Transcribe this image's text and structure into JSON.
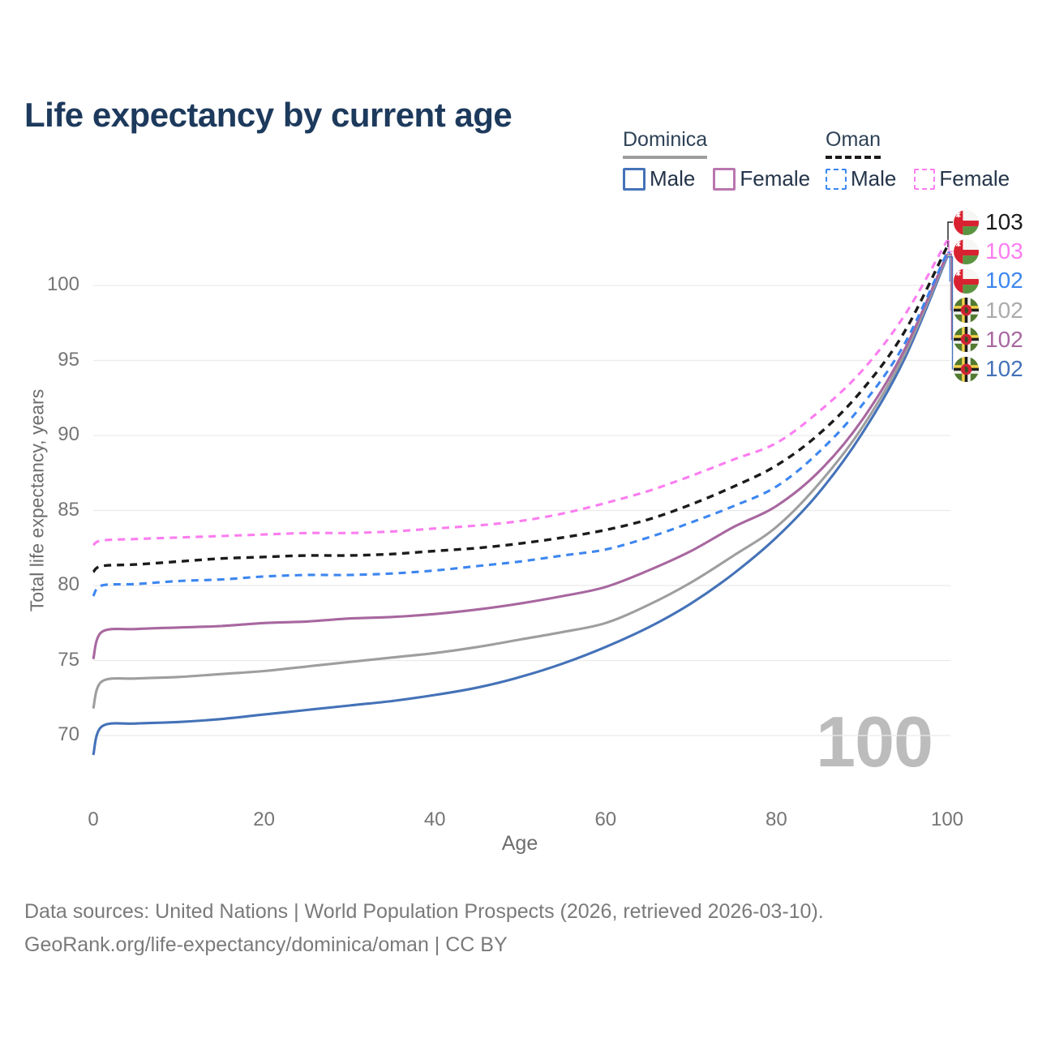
{
  "chart_data": {
    "type": "line",
    "title": "Life expectancy by current age",
    "xlabel": "Age",
    "ylabel": "Total life expectancy, years",
    "xlim": [
      0,
      100
    ],
    "ylim": [
      67,
      104
    ],
    "xticks": [
      0,
      20,
      40,
      60,
      80,
      100
    ],
    "yticks": [
      70,
      75,
      80,
      85,
      90,
      95,
      100
    ],
    "grid": true,
    "grid_color": "#eaeaea",
    "legend_position": "top-right",
    "x": [
      0,
      1,
      5,
      10,
      15,
      20,
      25,
      30,
      35,
      40,
      45,
      50,
      55,
      60,
      65,
      70,
      75,
      80,
      85,
      90,
      95,
      100
    ],
    "series": [
      {
        "key": "dominica_male",
        "name": "Dominica Male",
        "country": "Dominica",
        "sex": "Male",
        "color": "#4472b8",
        "dash": false,
        "values": [
          68.7,
          70.6,
          70.8,
          70.9,
          71.1,
          71.4,
          71.7,
          72.0,
          72.3,
          72.7,
          73.2,
          73.9,
          74.8,
          75.9,
          77.2,
          78.8,
          80.8,
          83.2,
          86.2,
          90.1,
          95.1,
          101.9
        ]
      },
      {
        "key": "dominica_total",
        "name": "Dominica Total",
        "country": "Dominica",
        "sex": "Total",
        "color": "#9e9e9e",
        "dash": false,
        "values": [
          71.8,
          73.6,
          73.8,
          73.9,
          74.1,
          74.3,
          74.6,
          74.9,
          75.2,
          75.5,
          75.9,
          76.4,
          76.9,
          77.5,
          78.7,
          80.2,
          82.0,
          83.9,
          86.8,
          90.5,
          95.4,
          102.0
        ]
      },
      {
        "key": "dominica_female",
        "name": "Dominica Female",
        "country": "Dominica",
        "sex": "Female",
        "color": "#a8679f",
        "dash": false,
        "values": [
          75.1,
          76.9,
          77.1,
          77.2,
          77.3,
          77.5,
          77.6,
          77.8,
          77.9,
          78.1,
          78.4,
          78.8,
          79.3,
          79.9,
          81.0,
          82.3,
          83.9,
          85.3,
          87.6,
          91.0,
          95.7,
          102.1
        ]
      },
      {
        "key": "oman_male",
        "name": "Oman Male",
        "country": "Oman",
        "sex": "Male",
        "color": "#3d86f0",
        "dash": true,
        "values": [
          79.3,
          80.0,
          80.1,
          80.3,
          80.4,
          80.6,
          80.7,
          80.7,
          80.8,
          81.0,
          81.3,
          81.6,
          82.0,
          82.4,
          83.2,
          84.2,
          85.3,
          86.6,
          88.9,
          92.0,
          96.1,
          102.2
        ]
      },
      {
        "key": "oman_total",
        "name": "Oman Total",
        "country": "Oman",
        "sex": "Total",
        "color": "#1b1b1b",
        "dash": true,
        "values": [
          80.9,
          81.3,
          81.4,
          81.6,
          81.8,
          81.9,
          82.0,
          82.0,
          82.1,
          82.3,
          82.5,
          82.8,
          83.2,
          83.7,
          84.4,
          85.4,
          86.6,
          88.0,
          90.1,
          93.0,
          96.9,
          102.6
        ]
      },
      {
        "key": "oman_female",
        "name": "Oman Female",
        "country": "Oman",
        "sex": "Female",
        "color": "#fb7df0",
        "dash": true,
        "values": [
          82.7,
          83.0,
          83.1,
          83.2,
          83.3,
          83.4,
          83.5,
          83.5,
          83.6,
          83.8,
          84.0,
          84.3,
          84.8,
          85.5,
          86.3,
          87.3,
          88.4,
          89.5,
          91.6,
          94.3,
          98.0,
          103.0
        ]
      }
    ]
  },
  "legend": {
    "groups": [
      {
        "label": "Dominica",
        "line_style": "solid",
        "line_color": "#9e9e9e",
        "items": [
          {
            "label": "Male",
            "color": "#4472b8"
          },
          {
            "label": "Female",
            "color": "#b976ae"
          }
        ]
      },
      {
        "label": "Oman",
        "line_style": "dashed",
        "line_color": "#1b1b1b",
        "items": [
          {
            "label": "Male",
            "color": "#3d86f0"
          },
          {
            "label": "Female",
            "color": "#fb7df0"
          }
        ]
      }
    ]
  },
  "end_labels": [
    {
      "series_key": "oman_total",
      "value": "103",
      "color": "#1b1b1b",
      "flag_icon": "oman-flag-icon"
    },
    {
      "series_key": "oman_female",
      "value": "103",
      "color": "#fb7df0",
      "flag_icon": "oman-flag-icon"
    },
    {
      "series_key": "oman_male",
      "value": "102",
      "color": "#3d86f0",
      "flag_icon": "oman-flag-icon"
    },
    {
      "series_key": "dominica_total",
      "value": "102",
      "color": "#ababab",
      "flag_icon": "dominica-flag-icon"
    },
    {
      "series_key": "dominica_female",
      "value": "102",
      "color": "#a8679f",
      "flag_icon": "dominica-flag-icon"
    },
    {
      "series_key": "dominica_male",
      "value": "102",
      "color": "#4472b8",
      "flag_icon": "dominica-flag-icon"
    }
  ],
  "watermark": "100",
  "title_color": "#1d3a5c",
  "footer": {
    "line1": "Data sources: United Nations | World Population Prospects (2026, retrieved 2026-03-10).",
    "line2": "GeoRank.org/life-expectancy/dominica/oman | CC BY"
  }
}
